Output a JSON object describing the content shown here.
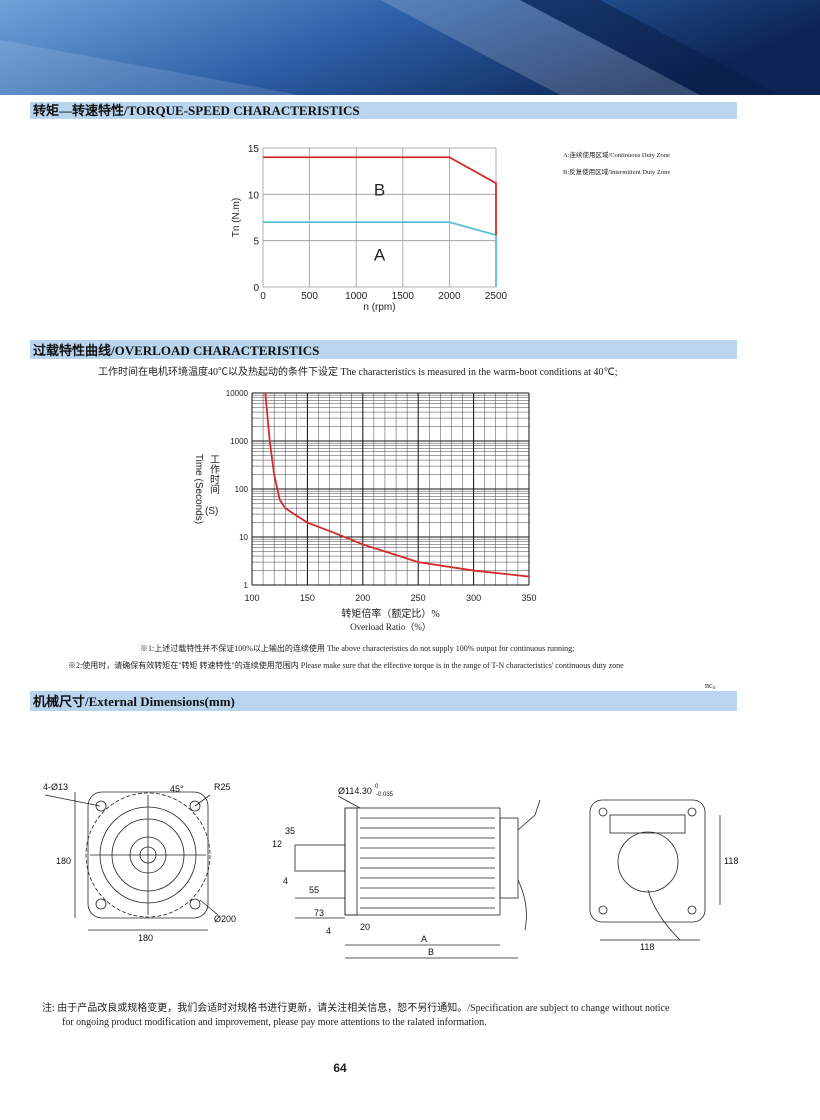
{
  "sections": [
    {
      "title": "转矩—转速特性/TORQUE-SPEED CHARACTERISTICS",
      "chart": {
        "type": "line",
        "y_label": "Tn (N.m)",
        "x_label": "n (rpm)",
        "xlim": [
          0,
          2500
        ],
        "xticks": [
          0,
          500,
          1000,
          1500,
          2000,
          2500
        ],
        "ylim": [
          0,
          15
        ],
        "yticks": [
          0,
          5,
          10,
          15
        ],
        "grid": true,
        "legend": "right",
        "annotations": [
          "A",
          "B"
        ],
        "series": [
          {
            "name": "A:连续使用区域/Continuous Duty Zone",
            "color": "#5bbfd6",
            "x": [
              0,
              2000,
              2500,
              2500
            ],
            "values": [
              7,
              7,
              5.6,
              0
            ]
          },
          {
            "name": "B:反复使用区域/Intermittent Duty Zone",
            "color": "#d42a2a",
            "x": [
              0,
              2000,
              2500,
              2500
            ],
            "values": [
              14,
              14,
              11.2,
              5.6
            ]
          }
        ]
      }
    },
    {
      "title": "过载特性曲线/OVERLOAD CHARACTERISTICS",
      "subtitle": "工作时间在电机环境温度40℃以及热起动的条件下设定 The characteristics is measured in the warm-boot conditions at 40℃;",
      "chart": {
        "type": "line",
        "log_y": true,
        "minor_grid": true,
        "x_minor_step": 10,
        "y_label": "Time (Seconds)",
        "y_label_cn": "工作时间",
        "y_label_unit": "(S)",
        "x_label": "转矩倍率（额定比）%",
        "x_label_en": "Overload Ratio（%）",
        "xlim": [
          100,
          350
        ],
        "xticks": [
          100,
          150,
          200,
          250,
          300,
          350
        ],
        "ylim": [
          1,
          10000
        ],
        "yticks": [
          1,
          10,
          100,
          1000,
          10000
        ],
        "x": [
          112,
          116,
          120,
          125,
          130,
          140,
          150,
          175,
          200,
          250,
          300,
          350
        ],
        "series": [
          {
            "color": "#d42a2a",
            "values": [
              10000,
              1000,
              200,
              60,
              40,
              28,
              20,
              12,
              7,
              3,
              2,
              1.5
            ]
          }
        ]
      },
      "notes": [
        "※1:上述过载特性并不保证100%以上输出的连续使用 The above characteristics do not supply 100% output for continuous running;",
        "※2:使用时，请确保有效转矩在\"转矩 转速特性\"的连续使用范围内 Please make sure that the effective torque is in the range of T-N characteristics' continuous duty zone",
        "nc。"
      ]
    },
    {
      "title": "机械尺寸/External Dimensions(mm)",
      "dimension_labels": [
        "4-Ø13",
        "45°",
        "R25",
        "180",
        "Ø200",
        "180",
        "Ø114.30",
        "0",
        "-0.035",
        "35",
        "12",
        "4",
        "55",
        "73",
        "4",
        "20",
        "A",
        "B",
        "118",
        "118"
      ]
    }
  ],
  "footer": {
    "note_lines": [
      "注:  由于产品改良或规格变更，我们会适时对规格书进行更新，请关注相关信息，恕不另行通知。/Specification are subject to change without notice",
      "for ongoing product modification and improvement, please pay more attentions to the ralated information."
    ],
    "page_number": "64"
  }
}
